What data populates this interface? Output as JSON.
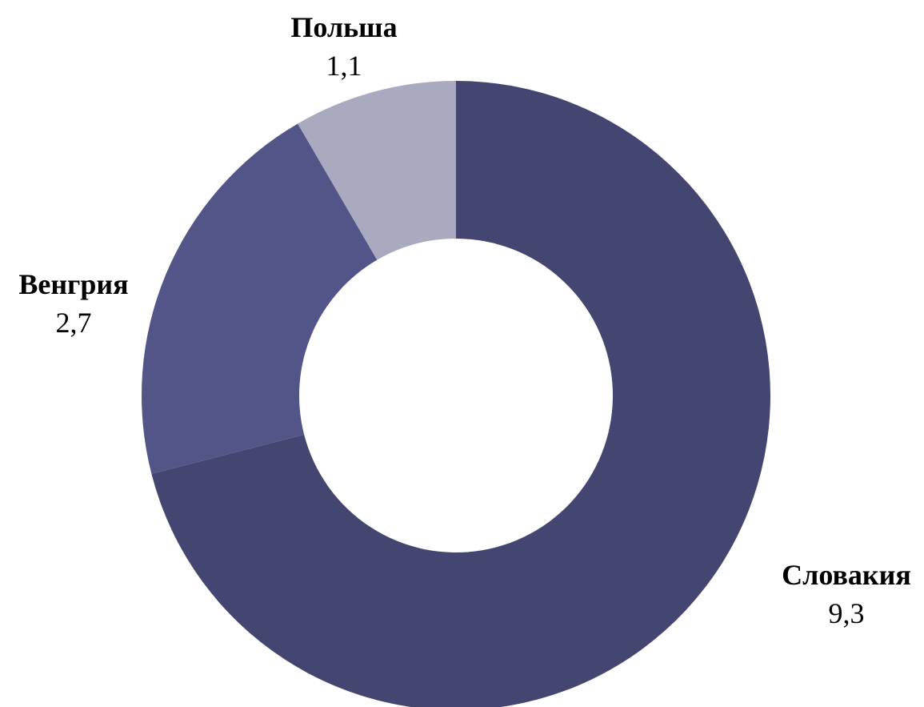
{
  "chart_data": {
    "type": "pie",
    "variant": "donut",
    "slices": [
      {
        "label": "Словакия",
        "value": 9.3,
        "value_label": "9,3",
        "color": "#444570"
      },
      {
        "label": "Венгрия",
        "value": 2.7,
        "value_label": "2,7",
        "color": "#535488"
      },
      {
        "label": "Польша",
        "value": 1.1,
        "value_label": "1,1",
        "color": "#a9aabf"
      }
    ],
    "start_angle_deg": 0,
    "direction": "clockwise",
    "legend": "none"
  }
}
